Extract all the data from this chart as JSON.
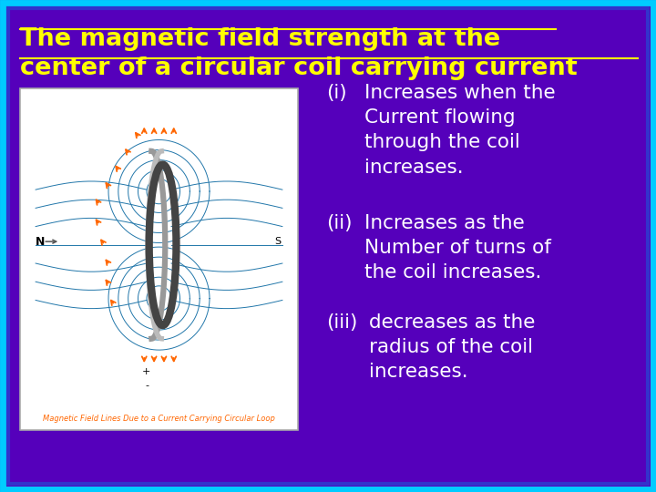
{
  "background_color": "#5500BB",
  "border_color_outer": "#00CCFF",
  "border_color_inner": "#3333CC",
  "title_line1": "The magnetic field strength at the",
  "title_line2": "center of a circular coil carrying current",
  "title_color": "#FFFF00",
  "title_fontsize": 19.5,
  "body_text_color": "#FFFFFF",
  "body_fontsize": 15.5,
  "point1_label": "(i)",
  "point1_text": "Increases when the\nCurrent flowing\nthrough the coil\nincreases.",
  "point2_label": "(ii)",
  "point2_text": "Increases as the\nNumber of turns of\nthe coil increases.",
  "point3_label": "(iii)",
  "point3_text": "decreases as the\nradius of the coil\nincreases.",
  "image_caption": "Magnetic Field Lines Due to a Current Carrying Circular Loop",
  "image_caption_color": "#FF6600"
}
